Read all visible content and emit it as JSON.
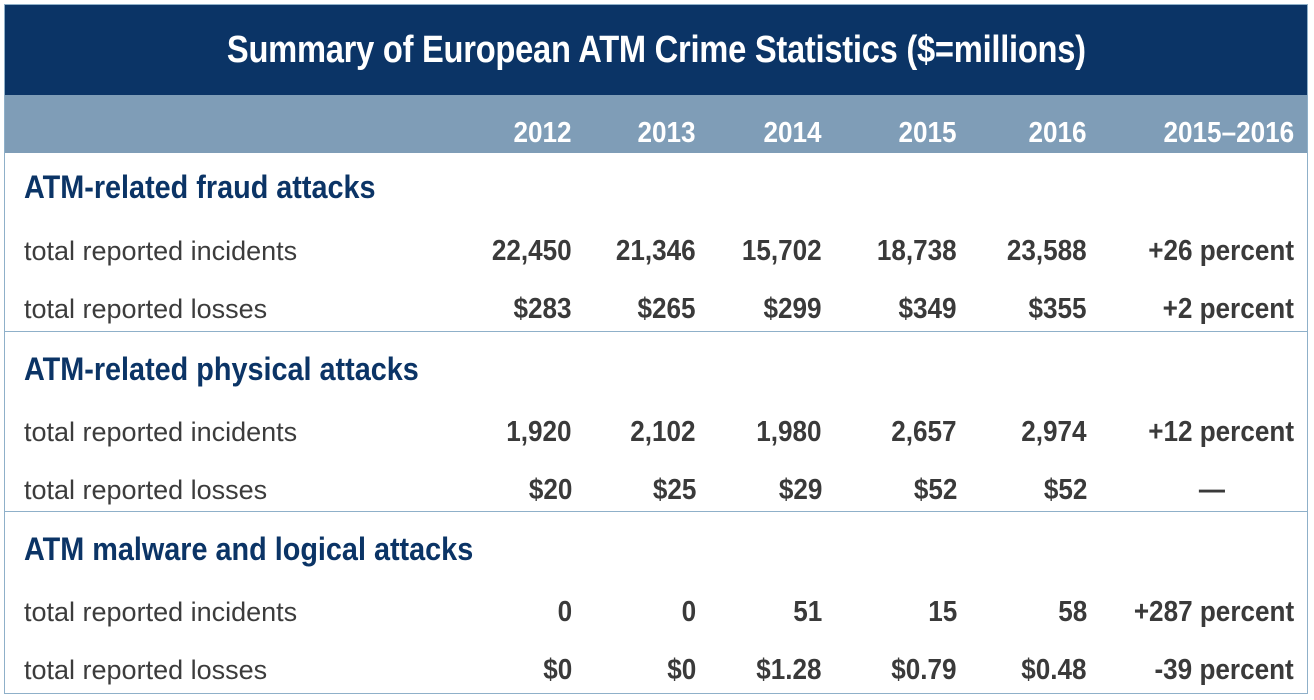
{
  "chart_data": {
    "type": "table",
    "title": "Summary of European ATM Crime Statistics ($=millions)",
    "columns": [
      "2012",
      "2013",
      "2014",
      "2015",
      "2016",
      "2015–2016"
    ],
    "sections": [
      {
        "title": "ATM-related fraud attacks",
        "rows": [
          {
            "label": "total reported incidents",
            "values": [
              "22,450",
              "21,346",
              "15,702",
              "18,738",
              "23,588",
              "+26 percent"
            ]
          },
          {
            "label": "total reported losses",
            "values": [
              "$283",
              "$265",
              "$299",
              "$349",
              "$355",
              "+2 percent"
            ]
          }
        ]
      },
      {
        "title": "ATM-related physical attacks",
        "rows": [
          {
            "label": "total reported incidents",
            "values": [
              "1,920",
              "2,102",
              "1,980",
              "2,657",
              "2,974",
              "+12 percent"
            ]
          },
          {
            "label": "total reported losses",
            "values": [
              "$20",
              "$25",
              "$29",
              "$52",
              "$52",
              "—"
            ]
          }
        ]
      },
      {
        "title": "ATM malware and logical attacks",
        "rows": [
          {
            "label": "total reported incidents",
            "values": [
              "0",
              "0",
              "51",
              "15",
              "58",
              "+287 percent"
            ]
          },
          {
            "label": "total reported losses",
            "values": [
              "$0",
              "$0",
              "$1.28",
              "$0.79",
              "$0.48",
              "-39 percent"
            ]
          }
        ]
      }
    ]
  }
}
